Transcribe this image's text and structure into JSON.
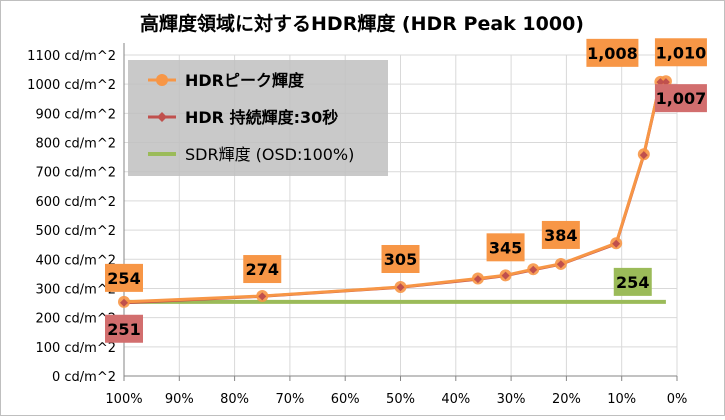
{
  "chart_data": {
    "type": "line",
    "title": "高輝度領域に対するHDR輝度 (HDR Peak 1000)",
    "x_tick_labels": [
      "100%",
      "90%",
      "80%",
      "70%",
      "60%",
      "50%",
      "40%",
      "30%",
      "20%",
      "10%",
      "0%"
    ],
    "y_tick_labels": [
      "0 cd/m^2",
      "100 cd/m^2",
      "200 cd/m^2",
      "300 cd/m^2",
      "400 cd/m^2",
      "500 cd/m^2",
      "600 cd/m^2",
      "700 cd/m^2",
      "800 cd/m^2",
      "900 cd/m^2",
      "1000 cd/m^2",
      "1100 cd/m^2"
    ],
    "xlim": [
      100,
      0
    ],
    "ylim": [
      0,
      1100
    ],
    "grid": true,
    "legend_position": "top-left",
    "series": [
      {
        "name": "HDRピーク輝度",
        "color": "#F79646",
        "marker": "circle",
        "x": [
          100,
          75,
          50,
          36,
          31,
          26,
          21,
          11,
          6,
          3,
          2
        ],
        "y": [
          254,
          274,
          305,
          334,
          345,
          366,
          384,
          455,
          760,
          1008,
          1010
        ]
      },
      {
        "name": "HDR 持続輝度:30秒",
        "color": "#C0504D",
        "marker": "diamond",
        "x": [
          100,
          75,
          50,
          36,
          31,
          26,
          21,
          11,
          6,
          3,
          2
        ],
        "y": [
          251,
          273,
          304,
          332,
          344,
          364,
          383,
          453,
          757,
          1007,
          1007
        ]
      },
      {
        "name": "SDR輝度 (OSD:100%)",
        "color": "#9BBB59",
        "marker": "none",
        "x": [
          100,
          2
        ],
        "y": [
          254,
          254
        ]
      }
    ],
    "annotations": [
      {
        "text": "254",
        "series": 0,
        "bg": "#F79646"
      },
      {
        "text": "274",
        "series": 0,
        "bg": "#F79646"
      },
      {
        "text": "305",
        "series": 0,
        "bg": "#F79646"
      },
      {
        "text": "345",
        "series": 0,
        "bg": "#F79646"
      },
      {
        "text": "384",
        "series": 0,
        "bg": "#F79646"
      },
      {
        "text": "1,008",
        "series": 0,
        "bg": "#F79646"
      },
      {
        "text": "1,010",
        "series": 0,
        "bg": "#F79646"
      },
      {
        "text": "251",
        "series": 1,
        "bg": "#D26E6E"
      },
      {
        "text": "1,007",
        "series": 1,
        "bg": "#D26E6E"
      },
      {
        "text": "254",
        "series": 2,
        "bg": "#9BBB59"
      }
    ]
  }
}
